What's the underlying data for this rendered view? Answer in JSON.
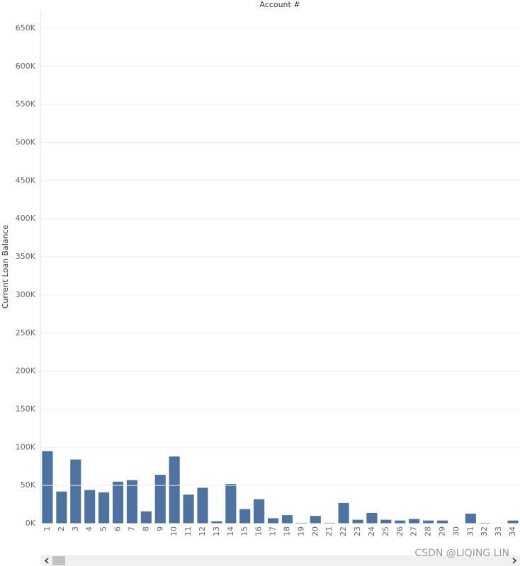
{
  "chart_data": {
    "type": "bar",
    "title": "Account #",
    "y_label": "Current Loan Balance",
    "categories": [
      "1",
      "2",
      "3",
      "4",
      "5",
      "6",
      "7",
      "8",
      "9",
      "10",
      "11",
      "12",
      "13",
      "14",
      "15",
      "16",
      "17",
      "18",
      "19",
      "20",
      "21",
      "22",
      "23",
      "24",
      "25",
      "26",
      "27",
      "28",
      "29",
      "30",
      "31",
      "32",
      "33",
      "34"
    ],
    "values": [
      95000,
      42000,
      84000,
      44000,
      41000,
      55000,
      57000,
      16000,
      64000,
      88000,
      38000,
      47000,
      3000,
      52000,
      19000,
      32000,
      7000,
      11000,
      1000,
      10000,
      1000,
      27000,
      5000,
      14000,
      5000,
      4000,
      6000,
      4000,
      4000,
      0,
      13000,
      1000,
      0,
      4000
    ],
    "color": "#4e73a0",
    "ylim": [
      0,
      650000
    ],
    "yticks": [
      {
        "value": 0,
        "label": "0K"
      },
      {
        "value": 50000,
        "label": "50K"
      },
      {
        "value": 100000,
        "label": "100K"
      },
      {
        "value": 150000,
        "label": "150K"
      },
      {
        "value": 200000,
        "label": "200K"
      },
      {
        "value": 250000,
        "label": "250K"
      },
      {
        "value": 300000,
        "label": "300K"
      },
      {
        "value": 350000,
        "label": "350K"
      },
      {
        "value": 400000,
        "label": "400K"
      },
      {
        "value": 450000,
        "label": "450K"
      },
      {
        "value": 500000,
        "label": "500K"
      },
      {
        "value": 550000,
        "label": "550K"
      },
      {
        "value": 600000,
        "label": "600K"
      },
      {
        "value": 650000,
        "label": "650K"
      }
    ],
    "grid": true
  },
  "watermark": "CSDN @LIQING LIN"
}
